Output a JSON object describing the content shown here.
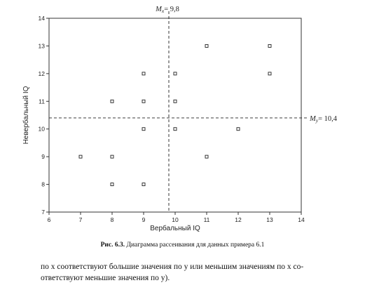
{
  "chart_data": {
    "type": "scatter",
    "xlabel": "Вербальный IQ",
    "ylabel": "Невербальный IQ",
    "xlim": [
      6,
      14
    ],
    "ylim": [
      7,
      14
    ],
    "xticks": [
      6,
      7,
      8,
      9,
      10,
      11,
      12,
      13,
      14
    ],
    "yticks": [
      7,
      8,
      9,
      10,
      11,
      12,
      13,
      14
    ],
    "points": [
      {
        "x": 7,
        "y": 9
      },
      {
        "x": 8,
        "y": 11
      },
      {
        "x": 8,
        "y": 9
      },
      {
        "x": 8,
        "y": 8
      },
      {
        "x": 9,
        "y": 12
      },
      {
        "x": 9,
        "y": 11
      },
      {
        "x": 9,
        "y": 10
      },
      {
        "x": 9,
        "y": 8
      },
      {
        "x": 10,
        "y": 12
      },
      {
        "x": 10,
        "y": 11
      },
      {
        "x": 10,
        "y": 10
      },
      {
        "x": 11,
        "y": 13
      },
      {
        "x": 11,
        "y": 9
      },
      {
        "x": 12,
        "y": 10
      },
      {
        "x": 13,
        "y": 13
      },
      {
        "x": 13,
        "y": 12
      }
    ],
    "mean_x": {
      "label_prefix": "M",
      "label_sub": "x",
      "label_value": "= 9,8",
      "value": 9.8
    },
    "mean_y": {
      "label_prefix": "M",
      "label_sub": "y",
      "label_value": "= 10,4",
      "value": 10.4
    }
  },
  "caption": {
    "number": "Рис. 6.3.",
    "text": " Диаграмма рассеивания для данных примера 6.1"
  },
  "body_text": [
    "по x соответствуют большие значения по y или меньшим значениям по x со-",
    "ответствуют меньшие значения по y)."
  ]
}
